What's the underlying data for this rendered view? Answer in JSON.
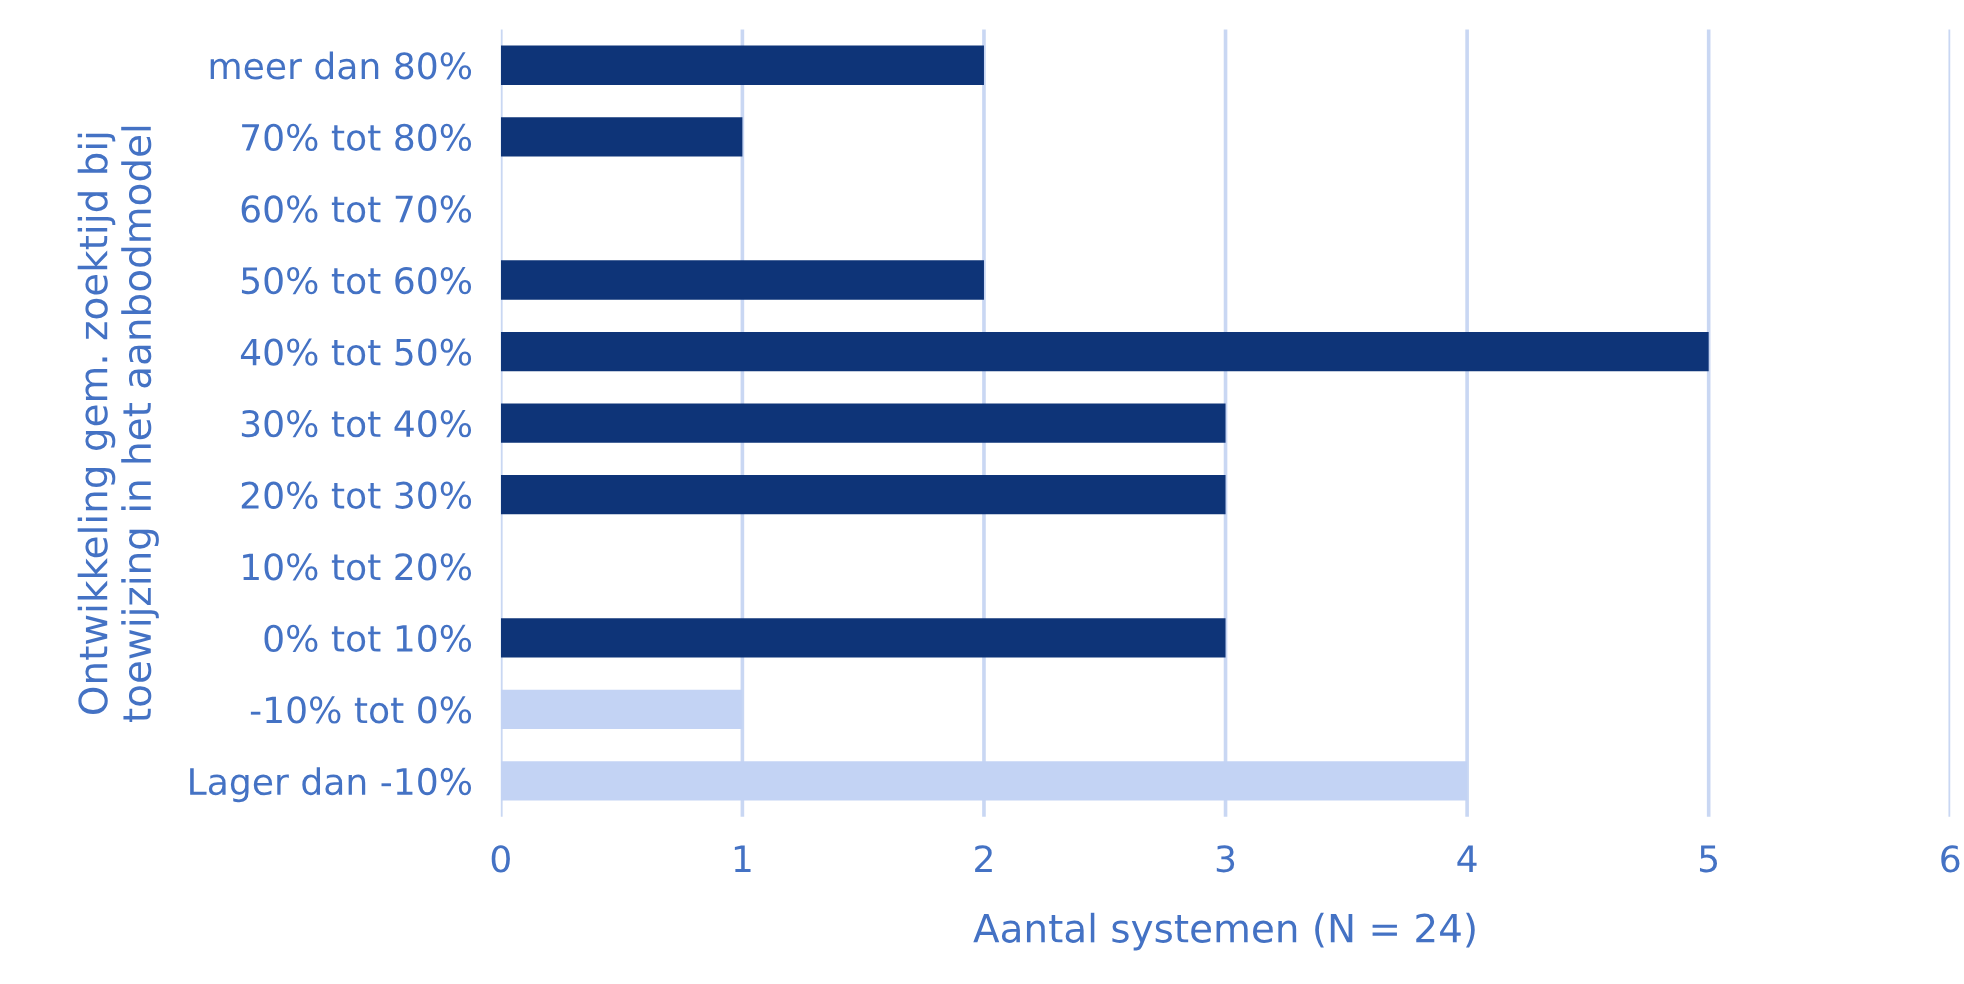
{
  "chart_data": {
    "type": "bar",
    "orientation": "horizontal",
    "categories": [
      "meer dan 80%",
      "70% tot 80%",
      "60% tot 70%",
      "50% tot 60%",
      "40% tot 50%",
      "30% tot 40%",
      "20% tot 30%",
      "10% tot 20%",
      "0% tot 10%",
      "-10% tot 0%",
      "Lager dan -10%"
    ],
    "values": [
      2,
      1,
      0,
      2,
      5,
      3,
      3,
      0,
      3,
      1,
      4
    ],
    "colors": [
      "#0e3478",
      "#0e3478",
      "#0e3478",
      "#0e3478",
      "#0e3478",
      "#0e3478",
      "#0e3478",
      "#0e3478",
      "#0e3478",
      "#c3d3f4",
      "#c3d3f4"
    ],
    "xlabel": "Aantal systemen (N = 24)",
    "ylabel": "Ontwikkeling gem. zoektijd bij\ntoewijzing in het aanbodmodel",
    "xlim": [
      0,
      6
    ],
    "xticks": [
      0,
      1,
      2,
      3,
      4,
      5,
      6
    ],
    "grid": "x",
    "legend": false
  }
}
